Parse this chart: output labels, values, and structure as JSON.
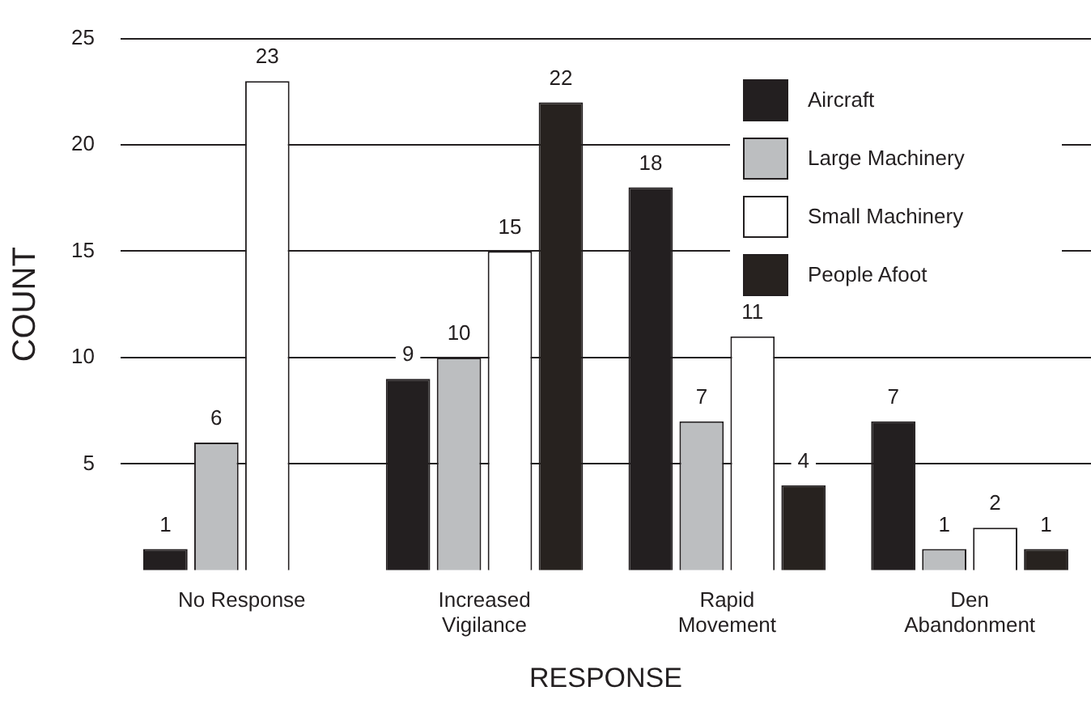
{
  "chart_data": {
    "type": "bar",
    "xlabel": "RESPONSE",
    "ylabel": "COUNT",
    "categories": [
      "No Response",
      "Increased\nVigilance",
      "Rapid\nMovement",
      "Den\nAbandonment"
    ],
    "series": [
      {
        "name": "Aircraft",
        "color": "#231f20",
        "values": [
          1,
          9,
          18,
          7
        ]
      },
      {
        "name": "Large Machinery",
        "color": "#bcbec0",
        "values": [
          6,
          10,
          7,
          1
        ]
      },
      {
        "name": "Small Machinery",
        "color": "#ffffff",
        "values": [
          23,
          15,
          11,
          2
        ]
      },
      {
        "name": "People Afoot",
        "color": "#27221f",
        "values": [
          null,
          22,
          4,
          1
        ]
      }
    ],
    "ylim": [
      0,
      25
    ],
    "yticks": [
      5,
      10,
      15,
      20,
      25
    ],
    "grid": "y",
    "legend": "top right",
    "data_labels": true
  }
}
